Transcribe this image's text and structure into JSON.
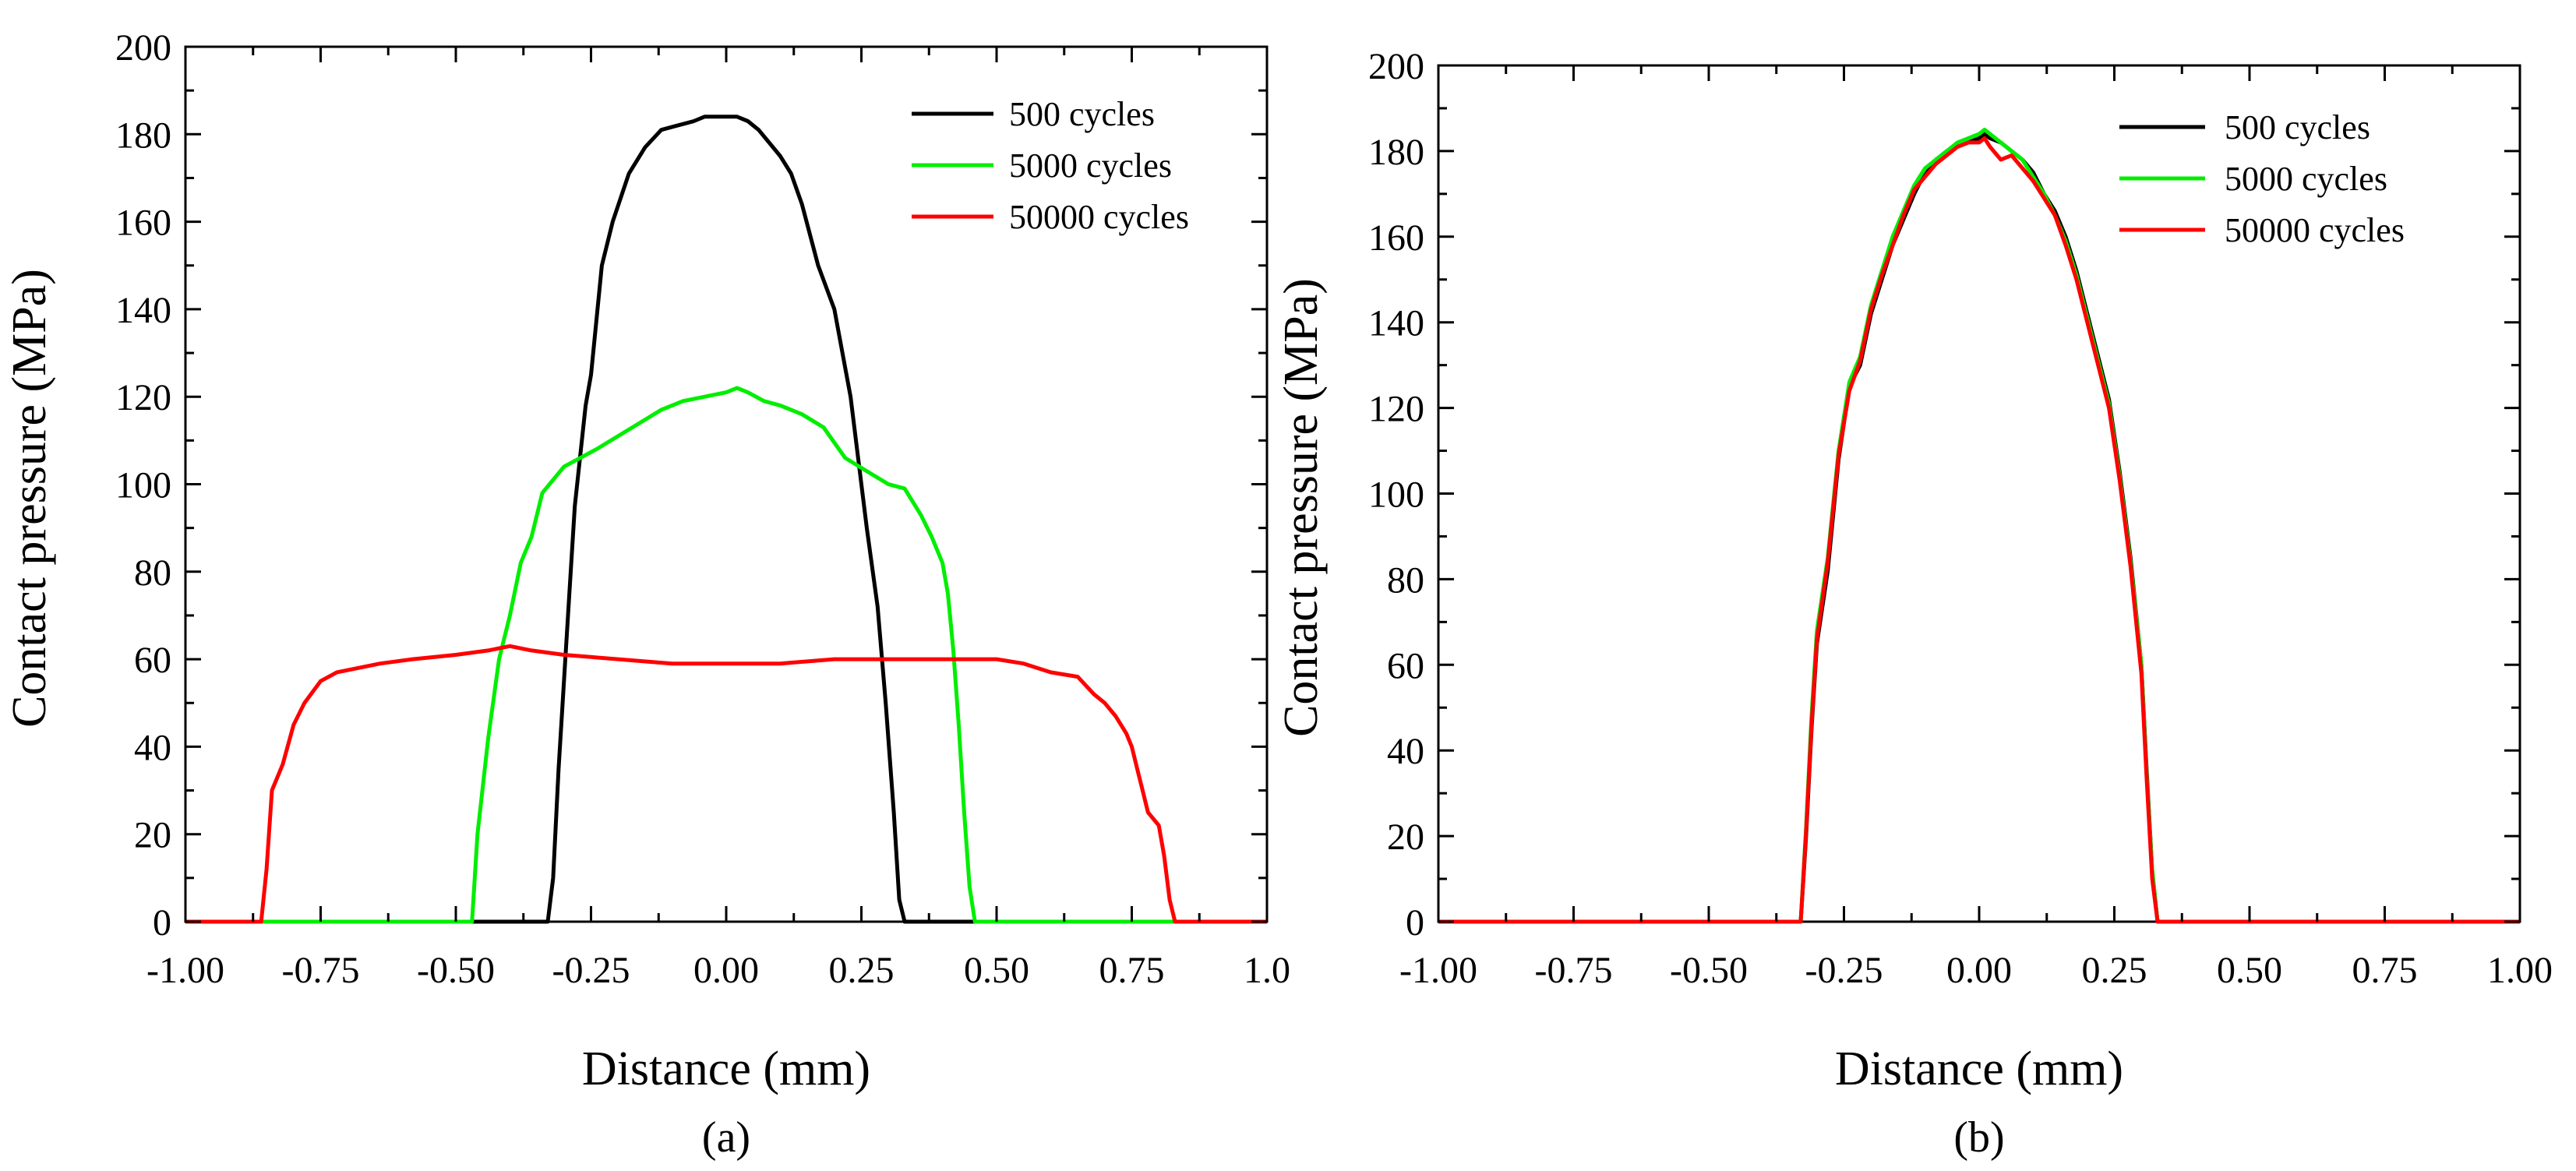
{
  "chart_data": [
    {
      "type": "line",
      "panel": "a",
      "caption": "(a)",
      "xlabel": "Distance (mm)",
      "ylabel": "Contact pressure (MPa)",
      "xlim": [
        -1.0,
        1.0
      ],
      "ylim": [
        0,
        200
      ],
      "xticks": [
        -1.0,
        -0.75,
        -0.5,
        -0.25,
        0.0,
        0.25,
        0.5,
        0.75,
        1.0
      ],
      "xtick_labels": [
        "-1.00",
        "-0.75",
        "-0.50",
        "-0.25",
        "0.00",
        "0.25",
        "0.50",
        "0.75",
        "1.0"
      ],
      "yticks": [
        0,
        20,
        40,
        60,
        80,
        100,
        120,
        140,
        160,
        180,
        200
      ],
      "ytick_labels": [
        "0",
        "20",
        "40",
        "60",
        "80",
        "100",
        "120",
        "140",
        "160",
        "180",
        "200"
      ],
      "legend_position": "top-right",
      "series": [
        {
          "name": "500 cycles",
          "color": "#000000",
          "x": [
            -1.0,
            -0.33,
            -0.32,
            -0.31,
            -0.29,
            -0.28,
            -0.26,
            -0.25,
            -0.23,
            -0.21,
            -0.18,
            -0.15,
            -0.12,
            -0.09,
            -0.06,
            -0.04,
            -0.02,
            0.0,
            0.02,
            0.04,
            0.06,
            0.08,
            0.1,
            0.12,
            0.14,
            0.17,
            0.2,
            0.23,
            0.245,
            0.26,
            0.28,
            0.295,
            0.31,
            0.32,
            0.33,
            1.0
          ],
          "y": [
            0,
            0,
            10,
            35,
            75,
            95,
            118,
            125,
            150,
            160,
            171,
            177,
            181,
            182,
            183,
            184,
            184,
            184,
            184,
            183,
            181,
            178,
            175,
            171,
            164,
            150,
            140,
            120,
            105,
            90,
            72,
            50,
            25,
            5,
            0,
            0
          ]
        },
        {
          "name": "5000 cycles",
          "color": "#00ee00",
          "x": [
            -1.0,
            -0.47,
            -0.46,
            -0.44,
            -0.42,
            -0.4,
            -0.38,
            -0.36,
            -0.34,
            -0.32,
            -0.3,
            -0.27,
            -0.24,
            -0.2,
            -0.16,
            -0.12,
            -0.08,
            -0.04,
            0.0,
            0.02,
            0.04,
            0.07,
            0.1,
            0.14,
            0.18,
            0.22,
            0.26,
            0.3,
            0.33,
            0.36,
            0.38,
            0.4,
            0.41,
            0.42,
            0.43,
            0.44,
            0.45,
            0.46,
            1.0
          ],
          "y": [
            0,
            0,
            20,
            42,
            60,
            70,
            82,
            88,
            98,
            101,
            104,
            106,
            108,
            111,
            114,
            117,
            119,
            120,
            121,
            122,
            121,
            119,
            118,
            116,
            113,
            106,
            103,
            100,
            99,
            93,
            88,
            82,
            75,
            62,
            45,
            25,
            8,
            0,
            0
          ]
        },
        {
          "name": "50000 cycles",
          "color": "#ff0000",
          "x": [
            -1.0,
            -0.86,
            -0.85,
            -0.84,
            -0.82,
            -0.8,
            -0.78,
            -0.75,
            -0.72,
            -0.68,
            -0.64,
            -0.58,
            -0.5,
            -0.44,
            -0.4,
            -0.36,
            -0.3,
            -0.2,
            -0.1,
            0.0,
            0.1,
            0.2,
            0.3,
            0.4,
            0.5,
            0.55,
            0.6,
            0.65,
            0.68,
            0.7,
            0.72,
            0.74,
            0.75,
            0.76,
            0.77,
            0.78,
            0.8,
            0.81,
            0.82,
            0.83,
            1.0
          ],
          "y": [
            0,
            0,
            12,
            30,
            36,
            45,
            50,
            55,
            57,
            58,
            59,
            60,
            61,
            62,
            63,
            62,
            61,
            60,
            59,
            59,
            59,
            60,
            60,
            60,
            60,
            59,
            57,
            56,
            52,
            50,
            47,
            43,
            40,
            35,
            30,
            25,
            22,
            15,
            5,
            0,
            0
          ]
        }
      ]
    },
    {
      "type": "line",
      "panel": "b",
      "caption": "(b)",
      "xlabel": "Distance (mm)",
      "ylabel": "Contact pressure (MPa)",
      "xlim": [
        -1.0,
        1.0
      ],
      "ylim": [
        0,
        200
      ],
      "xticks": [
        -1.0,
        -0.75,
        -0.5,
        -0.25,
        0.0,
        0.25,
        0.5,
        0.75,
        1.0
      ],
      "xtick_labels": [
        "-1.00",
        "-0.75",
        "-0.50",
        "-0.25",
        "0.00",
        "0.25",
        "0.50",
        "0.75",
        "1.00"
      ],
      "yticks": [
        0,
        20,
        40,
        60,
        80,
        100,
        120,
        140,
        160,
        180,
        200
      ],
      "ytick_labels": [
        "0",
        "20",
        "40",
        "60",
        "80",
        "100",
        "120",
        "140",
        "160",
        "180",
        "200"
      ],
      "legend_position": "top-right",
      "series": [
        {
          "name": "500 cycles",
          "color": "#000000",
          "x": [
            -1.0,
            -0.33,
            -0.32,
            -0.31,
            -0.3,
            -0.28,
            -0.26,
            -0.24,
            -0.22,
            -0.2,
            -0.18,
            -0.16,
            -0.14,
            -0.12,
            -0.1,
            -0.08,
            -0.06,
            -0.04,
            -0.02,
            0.0,
            0.01,
            0.02,
            0.04,
            0.06,
            0.08,
            0.1,
            0.12,
            0.14,
            0.16,
            0.18,
            0.2,
            0.22,
            0.24,
            0.26,
            0.28,
            0.3,
            0.31,
            0.32,
            0.33,
            1.0
          ],
          "y": [
            0,
            0,
            20,
            45,
            65,
            82,
            108,
            125,
            130,
            142,
            150,
            158,
            164,
            170,
            175,
            178,
            180,
            181,
            182,
            183,
            184,
            183,
            182,
            180,
            178,
            175,
            170,
            166,
            160,
            152,
            142,
            132,
            122,
            105,
            85,
            60,
            35,
            12,
            0,
            0
          ]
        },
        {
          "name": "5000 cycles",
          "color": "#00ee00",
          "x": [
            -1.0,
            -0.33,
            -0.32,
            -0.31,
            -0.3,
            -0.28,
            -0.26,
            -0.24,
            -0.22,
            -0.2,
            -0.18,
            -0.16,
            -0.14,
            -0.12,
            -0.1,
            -0.08,
            -0.06,
            -0.04,
            -0.02,
            0.0,
            0.01,
            0.02,
            0.04,
            0.06,
            0.08,
            0.1,
            0.12,
            0.14,
            0.16,
            0.18,
            0.2,
            0.22,
            0.24,
            0.26,
            0.28,
            0.3,
            0.31,
            0.32,
            0.33,
            1.0
          ],
          "y": [
            0,
            0,
            22,
            48,
            68,
            85,
            110,
            126,
            132,
            144,
            152,
            160,
            166,
            172,
            176,
            178,
            180,
            182,
            183,
            184,
            185,
            184,
            182,
            180,
            178,
            174,
            170,
            165,
            159,
            151,
            141,
            131,
            121,
            104,
            84,
            60,
            34,
            12,
            0,
            0
          ]
        },
        {
          "name": "50000 cycles",
          "color": "#ff0000",
          "x": [
            -1.0,
            -0.33,
            -0.32,
            -0.31,
            -0.3,
            -0.28,
            -0.26,
            -0.24,
            -0.22,
            -0.2,
            -0.18,
            -0.16,
            -0.14,
            -0.12,
            -0.1,
            -0.08,
            -0.06,
            -0.04,
            -0.02,
            0.0,
            0.01,
            0.02,
            0.04,
            0.06,
            0.08,
            0.1,
            0.12,
            0.14,
            0.16,
            0.18,
            0.2,
            0.22,
            0.24,
            0.26,
            0.28,
            0.3,
            0.31,
            0.32,
            0.33,
            1.0
          ],
          "y": [
            0,
            0,
            21,
            46,
            66,
            84,
            109,
            124,
            131,
            143,
            151,
            158,
            165,
            171,
            174,
            177,
            179,
            181,
            182,
            182,
            183,
            181,
            178,
            179,
            176,
            173,
            169,
            165,
            158,
            150,
            140,
            130,
            120,
            103,
            83,
            58,
            33,
            10,
            0,
            0
          ]
        }
      ]
    }
  ]
}
